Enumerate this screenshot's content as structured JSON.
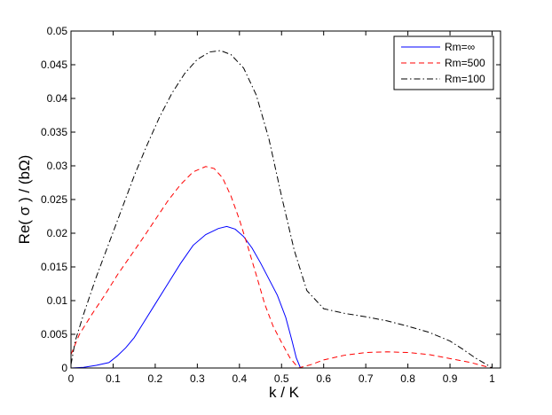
{
  "chart_data": {
    "type": "line",
    "xlabel": "k / K",
    "ylabel": "Re( σ ) / (bΩ)",
    "xlim": [
      0,
      1.02
    ],
    "ylim": [
      0,
      0.05
    ],
    "xticks": [
      0,
      0.1,
      0.2,
      0.3,
      0.4,
      0.5,
      0.6,
      0.7,
      0.8,
      0.9,
      1
    ],
    "xtick_labels": [
      "0",
      "0.1",
      "0.2",
      "0.3",
      "0.4",
      "0.5",
      "0.6",
      "0.7",
      "0.8",
      "0.9",
      "1"
    ],
    "yticks": [
      0,
      0.005,
      0.01,
      0.015,
      0.02,
      0.025,
      0.03,
      0.035,
      0.04,
      0.045,
      0.05
    ],
    "ytick_labels": [
      "0",
      "0.005",
      "0.01",
      "0.015",
      "0.02",
      "0.025",
      "0.03",
      "0.035",
      "0.04",
      "0.045",
      "0.05"
    ],
    "grid": false,
    "legend_position": "top-right",
    "series": [
      {
        "name": "Rm=∞",
        "color": "#0000ff",
        "dash": "solid",
        "points": [
          [
            0,
            0
          ],
          [
            0.03,
            0.0001
          ],
          [
            0.06,
            0.0004
          ],
          [
            0.09,
            0.0008
          ],
          [
            0.11,
            0.0018
          ],
          [
            0.13,
            0.003
          ],
          [
            0.15,
            0.0045
          ],
          [
            0.17,
            0.0065
          ],
          [
            0.2,
            0.0095
          ],
          [
            0.23,
            0.0125
          ],
          [
            0.26,
            0.0155
          ],
          [
            0.29,
            0.0182
          ],
          [
            0.32,
            0.0198
          ],
          [
            0.35,
            0.0207
          ],
          [
            0.37,
            0.021
          ],
          [
            0.39,
            0.0206
          ],
          [
            0.41,
            0.0195
          ],
          [
            0.43,
            0.0178
          ],
          [
            0.45,
            0.0156
          ],
          [
            0.47,
            0.0132
          ],
          [
            0.49,
            0.0108
          ],
          [
            0.51,
            0.0075
          ],
          [
            0.525,
            0.004
          ],
          [
            0.535,
            0.0015
          ],
          [
            0.545,
            0
          ]
        ]
      },
      {
        "name": "Rm=500",
        "color": "#ff0000",
        "dash": "dashed",
        "points": [
          [
            0,
            0.002
          ],
          [
            0.02,
            0.005
          ],
          [
            0.05,
            0.008
          ],
          [
            0.08,
            0.0108
          ],
          [
            0.11,
            0.0138
          ],
          [
            0.14,
            0.0165
          ],
          [
            0.17,
            0.0192
          ],
          [
            0.2,
            0.022
          ],
          [
            0.23,
            0.0248
          ],
          [
            0.26,
            0.0272
          ],
          [
            0.29,
            0.0291
          ],
          [
            0.32,
            0.0299
          ],
          [
            0.34,
            0.0296
          ],
          [
            0.36,
            0.0282
          ],
          [
            0.38,
            0.0255
          ],
          [
            0.4,
            0.022
          ],
          [
            0.42,
            0.018
          ],
          [
            0.44,
            0.0138
          ],
          [
            0.46,
            0.0095
          ],
          [
            0.48,
            0.0062
          ],
          [
            0.5,
            0.0038
          ],
          [
            0.52,
            0.0015
          ],
          [
            0.54,
            0
          ],
          [
            0.57,
            0.0005
          ],
          [
            0.6,
            0.0012
          ],
          [
            0.65,
            0.0019
          ],
          [
            0.7,
            0.0023
          ],
          [
            0.75,
            0.0024
          ],
          [
            0.8,
            0.0023
          ],
          [
            0.85,
            0.002
          ],
          [
            0.9,
            0.0014
          ],
          [
            0.95,
            0.0008
          ],
          [
            0.98,
            0.0003
          ],
          [
            1,
            0
          ],
          [
            1.02,
            0
          ]
        ]
      },
      {
        "name": "Rm=100",
        "color": "#000000",
        "dash": "dashdot",
        "points": [
          [
            0,
            0.0005
          ],
          [
            0.01,
            0.004
          ],
          [
            0.03,
            0.008
          ],
          [
            0.06,
            0.0135
          ],
          [
            0.09,
            0.0185
          ],
          [
            0.12,
            0.0235
          ],
          [
            0.15,
            0.0285
          ],
          [
            0.18,
            0.033
          ],
          [
            0.21,
            0.0372
          ],
          [
            0.24,
            0.0408
          ],
          [
            0.27,
            0.0437
          ],
          [
            0.3,
            0.0458
          ],
          [
            0.33,
            0.0469
          ],
          [
            0.355,
            0.0471
          ],
          [
            0.38,
            0.0465
          ],
          [
            0.41,
            0.0445
          ],
          [
            0.44,
            0.0405
          ],
          [
            0.47,
            0.034
          ],
          [
            0.5,
            0.0255
          ],
          [
            0.53,
            0.0175
          ],
          [
            0.56,
            0.0115
          ],
          [
            0.6,
            0.0088
          ],
          [
            0.65,
            0.0081
          ],
          [
            0.7,
            0.0076
          ],
          [
            0.75,
            0.007
          ],
          [
            0.8,
            0.0062
          ],
          [
            0.85,
            0.0053
          ],
          [
            0.9,
            0.004
          ],
          [
            0.93,
            0.0028
          ],
          [
            0.96,
            0.0015
          ],
          [
            0.99,
            0.0004
          ],
          [
            1.0,
            0
          ],
          [
            1.02,
            0
          ]
        ]
      }
    ]
  }
}
